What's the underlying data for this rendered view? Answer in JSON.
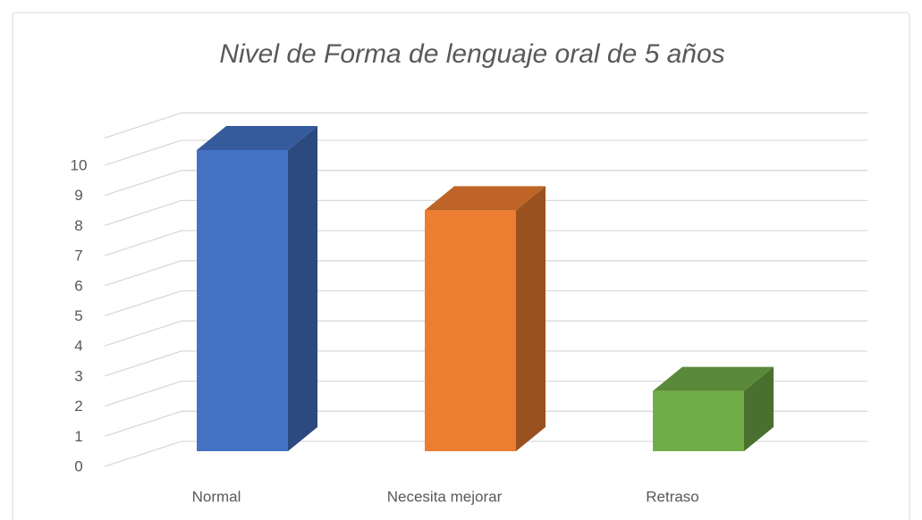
{
  "chart_data": {
    "type": "bar3d",
    "title": "Nivel de Forma de lenguaje oral  de 5 años",
    "categories": [
      "Normal",
      "Necesita mejorar",
      "Retraso"
    ],
    "values": [
      10,
      8,
      2
    ],
    "colors": [
      "#4472c4",
      "#ed7d31",
      "#70ad47"
    ],
    "ylim": [
      0,
      10
    ],
    "yticks": [
      0,
      1,
      2,
      3,
      4,
      5,
      6,
      7,
      8,
      9,
      10
    ],
    "grid": true
  }
}
